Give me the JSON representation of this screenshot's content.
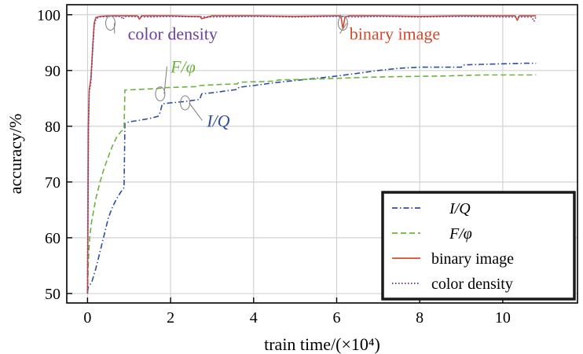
{
  "chart_data": {
    "type": "line",
    "xlabel": "train time/(×10⁴)",
    "ylabel": "accuracy/%",
    "xlim": [
      -0.5,
      11.8
    ],
    "ylim": [
      48.3,
      101.8
    ],
    "xticks": [
      0,
      2,
      4,
      6,
      8,
      10
    ],
    "yticks": [
      50,
      60,
      70,
      80,
      90,
      100
    ],
    "grid": true,
    "legend_position": "bottom-right",
    "series": [
      {
        "name": "I/Q",
        "color": "#2c4fa0",
        "dash": "dashdot",
        "italic": true,
        "x": [
          0,
          0.02,
          0.05,
          0.1,
          0.2,
          0.3,
          0.4,
          0.5,
          0.6,
          0.7,
          0.8,
          0.88,
          0.9,
          1.0,
          1.2,
          1.5,
          1.7,
          1.75,
          1.8,
          2.0,
          2.3,
          2.5,
          2.7,
          2.75,
          3.0,
          3.3,
          3.6,
          3.65,
          4.0,
          4.5,
          5.0,
          5.5,
          6.0,
          6.5,
          7.0,
          7.5,
          8.0,
          8.5,
          9.0,
          9.05,
          9.5,
          10.0,
          10.5,
          10.8
        ],
        "y": [
          50.3,
          51.2,
          51.5,
          52.0,
          54.5,
          57.5,
          60.5,
          63.5,
          65.5,
          67.0,
          68.2,
          69.0,
          80.5,
          80.8,
          81.0,
          81.4,
          81.8,
          82.5,
          84.0,
          84.2,
          84.4,
          84.6,
          84.8,
          85.8,
          86.0,
          86.3,
          86.6,
          87.0,
          87.3,
          87.8,
          88.2,
          88.6,
          89.0,
          89.5,
          90.0,
          90.4,
          90.6,
          90.6,
          90.6,
          91.0,
          91.1,
          91.2,
          91.3,
          91.3
        ]
      },
      {
        "name": "F/φ",
        "color": "#6db33f",
        "dash": "dash",
        "italic": true,
        "x": [
          0,
          0.02,
          0.05,
          0.1,
          0.2,
          0.3,
          0.4,
          0.5,
          0.6,
          0.7,
          0.8,
          0.88,
          0.9,
          1.2,
          1.5,
          1.75,
          1.8,
          2.2,
          2.6,
          2.7,
          3.2,
          3.6,
          3.65,
          4.2,
          4.5,
          4.6,
          5.2,
          6.0,
          6.8,
          7.5,
          8.5,
          9.5,
          10.8
        ],
        "y": [
          50.0,
          56.0,
          60.0,
          63.0,
          67.0,
          70.0,
          72.5,
          74.5,
          76.5,
          78.0,
          79.0,
          79.5,
          86.5,
          86.6,
          86.7,
          86.8,
          86.9,
          87.0,
          87.1,
          87.3,
          87.5,
          87.6,
          87.9,
          88.0,
          88.1,
          88.3,
          88.4,
          88.6,
          88.8,
          88.9,
          89.0,
          89.2,
          89.2
        ]
      },
      {
        "name": "binary image",
        "color": "#d24b2d",
        "dash": "solid",
        "italic": false,
        "x": [
          0,
          0.02,
          0.04,
          0.06,
          0.08,
          0.1,
          0.13,
          0.16,
          0.2,
          0.3,
          0.5,
          1.0,
          1.2,
          1.25,
          1.3,
          2.0,
          2.5,
          2.7,
          2.75,
          3.0,
          4.0,
          5.0,
          6.0,
          6.1,
          6.15,
          6.2,
          6.3,
          7.0,
          8.0,
          9.0,
          9.5,
          10.0,
          10.3,
          10.35,
          10.4,
          10.8
        ],
        "y": [
          50.0,
          80.0,
          86.5,
          87.5,
          88.5,
          91.0,
          95.0,
          98.5,
          99.5,
          99.7,
          99.8,
          99.8,
          99.8,
          99.2,
          99.8,
          99.8,
          99.7,
          99.7,
          99.3,
          99.8,
          99.8,
          99.7,
          99.8,
          99.8,
          97.5,
          99.6,
          99.8,
          99.8,
          99.7,
          99.8,
          99.8,
          99.8,
          99.8,
          99.0,
          99.8,
          99.8
        ]
      },
      {
        "name": "color density",
        "color": "#6b3fa0",
        "dash": "dot",
        "italic": false,
        "x": [
          0,
          0.02,
          0.04,
          0.06,
          0.08,
          0.1,
          0.13,
          0.16,
          0.2,
          0.3,
          0.5,
          0.8,
          0.85,
          0.9,
          1.5,
          2.0,
          3.0,
          4.0,
          5.0,
          6.0,
          6.5,
          7.0,
          8.0,
          9.0,
          10.0,
          10.7,
          10.75,
          10.8
        ],
        "y": [
          50.0,
          79.0,
          86.0,
          87.0,
          88.0,
          90.5,
          94.5,
          98.0,
          99.3,
          99.6,
          99.7,
          99.7,
          99.2,
          99.7,
          99.6,
          99.7,
          99.6,
          99.7,
          99.6,
          99.7,
          99.6,
          99.7,
          99.6,
          99.7,
          99.6,
          99.6,
          98.8,
          99.6
        ]
      }
    ],
    "annotations": [
      {
        "text": "color density",
        "color": "#6b3fa0",
        "italic": false,
        "x": 0.55,
        "y": 98.5,
        "label_x": 2.05,
        "label_y": 95.5
      },
      {
        "text": "binary image",
        "color": "#d24b2d",
        "italic": false,
        "x": 6.15,
        "y": 98.5,
        "label_x": 7.4,
        "label_y": 95.5
      },
      {
        "text": "F/φ",
        "color": "#6db33f",
        "italic": true,
        "x": 1.75,
        "y": 85.8,
        "label_x": 2.3,
        "label_y": 89.6
      },
      {
        "text": "I/Q",
        "color": "#2c4fa0",
        "italic": true,
        "x": 2.35,
        "y": 84.2,
        "label_x": 3.15,
        "label_y": 79.9
      }
    ]
  }
}
